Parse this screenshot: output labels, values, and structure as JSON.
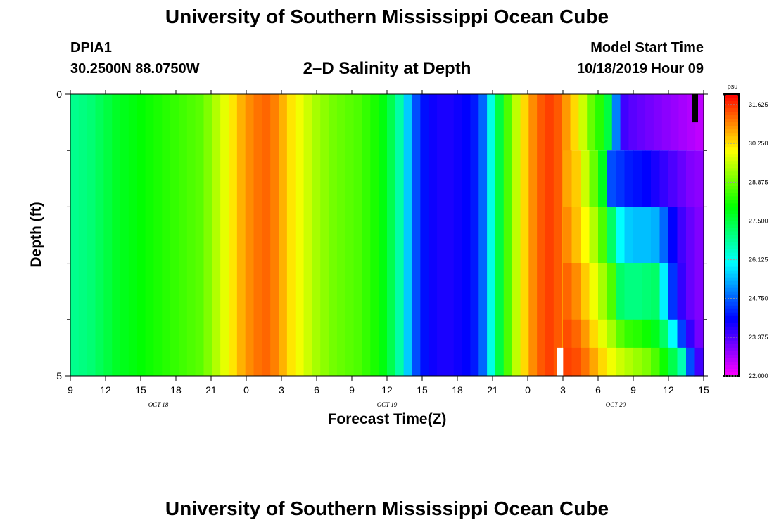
{
  "header": {
    "title": "University of Southern Mississippi Ocean Cube",
    "station": "DPIA1",
    "coords": "30.2500N 88.0750W",
    "plot_title": "2–D Salinity at Depth",
    "start_label": "Model Start Time",
    "start_value": "10/18/2019 Hour 09"
  },
  "footer": {
    "title": "University of Southern Mississippi Ocean Cube"
  },
  "chart_data": {
    "type": "heatmap",
    "title": "2–D Salinity at Depth",
    "xlabel": "Forecast Time(Z)",
    "ylabel": "Depth (ft)",
    "units": "psu",
    "x_range_hours": [
      0,
      54
    ],
    "x_ticks": [
      "9",
      "12",
      "15",
      "18",
      "21",
      "0",
      "3",
      "6",
      "9",
      "12",
      "15",
      "18",
      "21",
      "0",
      "3",
      "6",
      "9",
      "12",
      "15"
    ],
    "date_labels": [
      {
        "text": "OCT 18",
        "hour": 7.5
      },
      {
        "text": "OCT 19",
        "hour": 27
      },
      {
        "text": "OCT 20",
        "hour": 46.5
      }
    ],
    "y_range_ft": [
      0,
      5
    ],
    "y_tick_labels": [
      {
        "depth": 0,
        "text": "0"
      },
      {
        "depth": 5,
        "text": "5"
      }
    ],
    "y_minor_depths": [
      1,
      2,
      3,
      4
    ],
    "colorbar": {
      "min": 22.0,
      "max": 32.0,
      "ticks": [
        "22.000",
        "23.375",
        "24.750",
        "26.125",
        "27.500",
        "28.875",
        "30.250",
        "31.625"
      ],
      "unit_label": "psu"
    },
    "upper_layer_salinity_psu": [
      26.9,
      27.0,
      27.1,
      27.3,
      27.5,
      27.7,
      27.8,
      27.9,
      28.0,
      28.1,
      28.2,
      28.3,
      28.4,
      28.5,
      28.6,
      28.7,
      29.0,
      29.4,
      29.8,
      30.2,
      30.6,
      30.9,
      31.1,
      31.2,
      31.0,
      30.6,
      30.2,
      29.9,
      29.6,
      29.3,
      29.1,
      28.9,
      28.8,
      28.7,
      28.6,
      28.4,
      28.2,
      27.9,
      27.4,
      26.7,
      25.6,
      24.6,
      24.1,
      23.9,
      23.8,
      23.8,
      23.9,
      24.0,
      24.2,
      24.8,
      26.2,
      27.5,
      28.6,
      29.5,
      30.3,
      30.9,
      31.3,
      31.5,
      31.3,
      30.8,
      30.3,
      29.6,
      28.8,
      28.3,
      27.5,
      25.0,
      23.5,
      23.3,
      23.2,
      23.1,
      23.0,
      22.9,
      22.8,
      22.7,
      22.6,
      22.5
    ],
    "lower_layers_late_salinity_psu": [
      [
        30.7,
        30.4,
        29.6,
        28.8,
        27.8,
        24.6,
        24.4,
        24.2,
        24.1,
        24.0,
        23.8,
        23.6,
        23.4,
        23.2,
        23.0,
        22.9
      ],
      [
        30.9,
        30.5,
        30.0,
        29.4,
        28.6,
        27.2,
        26.0,
        25.6,
        25.5,
        25.5,
        25.4,
        24.8,
        24.0,
        23.5,
        23.2,
        23.0
      ],
      [
        31.2,
        30.9,
        30.4,
        29.9,
        29.3,
        28.6,
        27.2,
        27.0,
        27.0,
        27.1,
        27.2,
        25.9,
        24.4,
        23.6,
        23.2,
        23.0
      ],
      [
        31.4,
        31.2,
        30.8,
        30.3,
        29.8,
        29.3,
        28.7,
        28.4,
        28.3,
        28.1,
        27.8,
        27.2,
        26.0,
        24.5,
        23.6,
        23.1
      ],
      [
        31.5,
        31.4,
        31.1,
        30.7,
        30.3,
        29.9,
        29.6,
        29.4,
        29.2,
        29.0,
        28.6,
        28.1,
        27.4,
        26.6,
        24.6,
        23.5
      ]
    ],
    "lower_layers_start_hour": 42.0,
    "upper_layer_depth_ft": [
      0,
      1
    ],
    "lower_layer_depths_ft": [
      [
        1,
        2
      ],
      [
        2,
        3
      ],
      [
        3,
        4
      ],
      [
        4,
        4.5
      ],
      [
        4.5,
        5
      ]
    ],
    "missing_markers": [
      {
        "color": "#000000",
        "hour": 53.25,
        "depth": [
          0,
          0.5
        ]
      },
      {
        "color": "#ffffff",
        "hour": 41.75,
        "depth": [
          4.5,
          5
        ]
      }
    ]
  }
}
